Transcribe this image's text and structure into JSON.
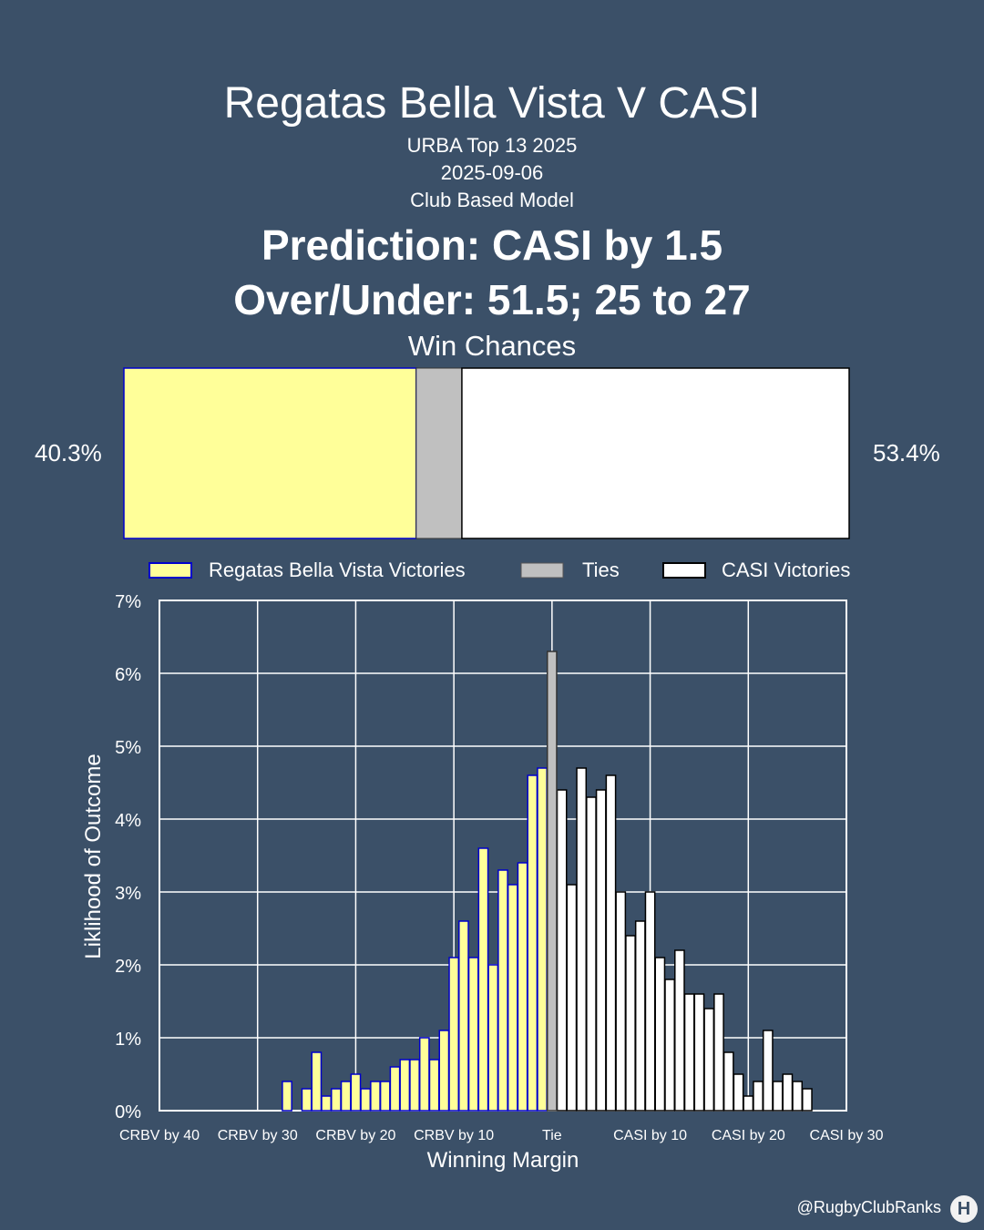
{
  "header": {
    "title": "Regatas Bella Vista V CASI",
    "competition": "URBA Top 13 2025",
    "date": "2025-09-06",
    "model": "Club Based Model",
    "prediction": "Prediction: CASI by 1.5",
    "over_under": "Over/Under: 51.5; 25 to 27"
  },
  "win_chances": {
    "title": "Win Chances",
    "home_label": "40.3%",
    "away_label": "53.4%",
    "home": 40.3,
    "tie": 6.3,
    "away": 53.4
  },
  "legend": {
    "home": "Regatas Bella Vista Victories",
    "tie": "Ties",
    "away": "CASI Victories"
  },
  "colors": {
    "background": "#3b5068",
    "home_fill": "#ffff99",
    "home_stroke": "#0000cc",
    "tie_fill": "#c0c0c0",
    "away_fill": "#ffffff",
    "away_stroke": "#000000"
  },
  "chart_data": {
    "type": "bar",
    "xlabel": "Winning Margin",
    "ylabel": "Liklihood of Outcome",
    "xlim": [
      -40,
      30
    ],
    "ylim": [
      0,
      7
    ],
    "x_ticks": [
      {
        "value": -40,
        "label": "CRBV by 40"
      },
      {
        "value": -30,
        "label": "CRBV by 30"
      },
      {
        "value": -20,
        "label": "CRBV by 20"
      },
      {
        "value": -10,
        "label": "CRBV by 10"
      },
      {
        "value": 0,
        "label": "Tie"
      },
      {
        "value": 10,
        "label": "CASI by 10"
      },
      {
        "value": 20,
        "label": "CASI by 20"
      },
      {
        "value": 30,
        "label": "CASI by 30"
      }
    ],
    "y_ticks": [
      {
        "value": 0,
        "label": "0%"
      },
      {
        "value": 1,
        "label": "1%"
      },
      {
        "value": 2,
        "label": "2%"
      },
      {
        "value": 3,
        "label": "3%"
      },
      {
        "value": 4,
        "label": "4%"
      },
      {
        "value": 5,
        "label": "5%"
      },
      {
        "value": 6,
        "label": "6%"
      },
      {
        "value": 7,
        "label": "7%"
      }
    ],
    "home_series": {
      "margins": [
        -27,
        -25,
        -24,
        -23,
        -22,
        -21,
        -20,
        -19,
        -18,
        -17,
        -16,
        -15,
        -14,
        -13,
        -12,
        -11,
        -10,
        -9,
        -8,
        -7,
        -6,
        -5,
        -4,
        -3,
        -2,
        -1
      ],
      "values": [
        0.4,
        0.3,
        0.8,
        0.2,
        0.3,
        0.4,
        0.5,
        0.3,
        0.4,
        0.4,
        0.6,
        0.7,
        0.7,
        1.0,
        0.7,
        1.1,
        2.1,
        2.6,
        2.1,
        3.6,
        2.0,
        3.3,
        3.1,
        3.4,
        4.6,
        4.7
      ]
    },
    "tie_series": {
      "margins": [
        0
      ],
      "values": [
        6.3
      ]
    },
    "away_series": {
      "margins": [
        1,
        2,
        3,
        4,
        5,
        6,
        7,
        8,
        9,
        10,
        11,
        12,
        13,
        14,
        15,
        16,
        17,
        18,
        19,
        20,
        21,
        22,
        23,
        24,
        25,
        26
      ],
      "values": [
        4.4,
        3.1,
        4.7,
        4.3,
        4.4,
        4.6,
        3.0,
        2.4,
        2.6,
        3.0,
        2.1,
        1.8,
        2.2,
        1.6,
        1.6,
        1.4,
        1.6,
        0.8,
        0.5,
        0.2,
        0.4,
        1.1,
        0.4,
        0.5,
        0.4,
        0.3
      ]
    }
  },
  "footer": {
    "handle": "@RugbyClubRanks",
    "logo_glyph": "H"
  }
}
